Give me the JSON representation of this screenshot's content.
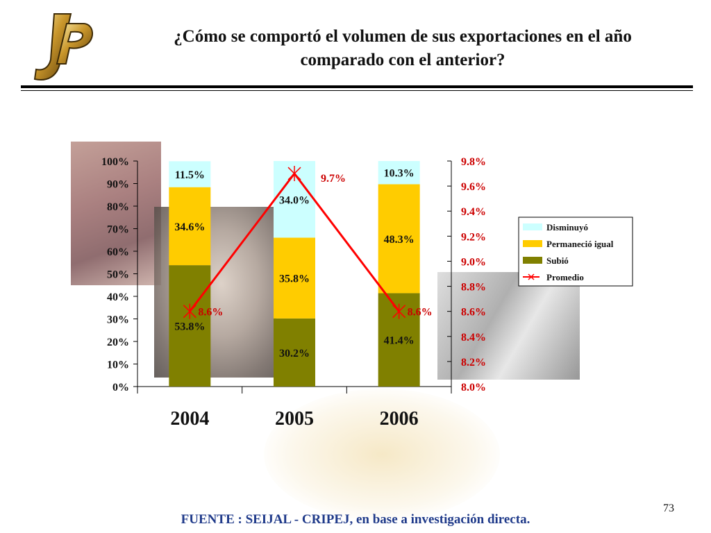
{
  "slide": {
    "title_line1": "¿Cómo se comportó el volumen de sus exportaciones en el año",
    "title_line2": "comparado con el anterior?",
    "source": "FUENTE : SEIJAL - CRIPEJ,  en base a investigación directa.",
    "page_number": "73"
  },
  "colors": {
    "disminuyo": "#ccffff",
    "permanecio": "#ffcc00",
    "subio": "#808000",
    "promedio": "#ff0000"
  },
  "chart_data": {
    "type": "bar",
    "stacked": true,
    "categories": [
      "2004",
      "2005",
      "2006"
    ],
    "series": [
      {
        "name": "Subió",
        "values": [
          53.8,
          30.2,
          41.4
        ],
        "labels": [
          "53.8%",
          "30.2%",
          "41.4%"
        ]
      },
      {
        "name": "Permaneció igual",
        "values": [
          34.6,
          35.8,
          48.3
        ],
        "labels": [
          "34.6%",
          "35.8%",
          "48.3%"
        ]
      },
      {
        "name": "Disminuyó",
        "values": [
          11.5,
          34.0,
          10.3
        ],
        "labels": [
          "11.5%",
          "34.0%",
          "10.3%"
        ]
      }
    ],
    "line_series": {
      "name": "Promedio",
      "axis": "right",
      "values": [
        8.6,
        9.7,
        8.6
      ],
      "labels": [
        "8.6%",
        "9.7%",
        "8.6%"
      ]
    },
    "legend_order": [
      "Disminuyó",
      "Permaneció igual",
      "Subió",
      "Promedio"
    ],
    "legend_labels": [
      "Disminuyó",
      "Permaneció igual",
      "Subió",
      "Promedio"
    ],
    "y_left": {
      "ylim": [
        0,
        100
      ],
      "ticks": [
        "0%",
        "10%",
        "20%",
        "30%",
        "40%",
        "50%",
        "60%",
        "70%",
        "80%",
        "90%",
        "100%"
      ]
    },
    "y_right": {
      "ylim": [
        8.0,
        9.8
      ],
      "ticks": [
        "8.0%",
        "8.2%",
        "8.4%",
        "8.6%",
        "8.8%",
        "9.0%",
        "9.2%",
        "9.4%",
        "9.6%",
        "9.8%"
      ]
    },
    "legend_position": "right",
    "grid": false
  }
}
